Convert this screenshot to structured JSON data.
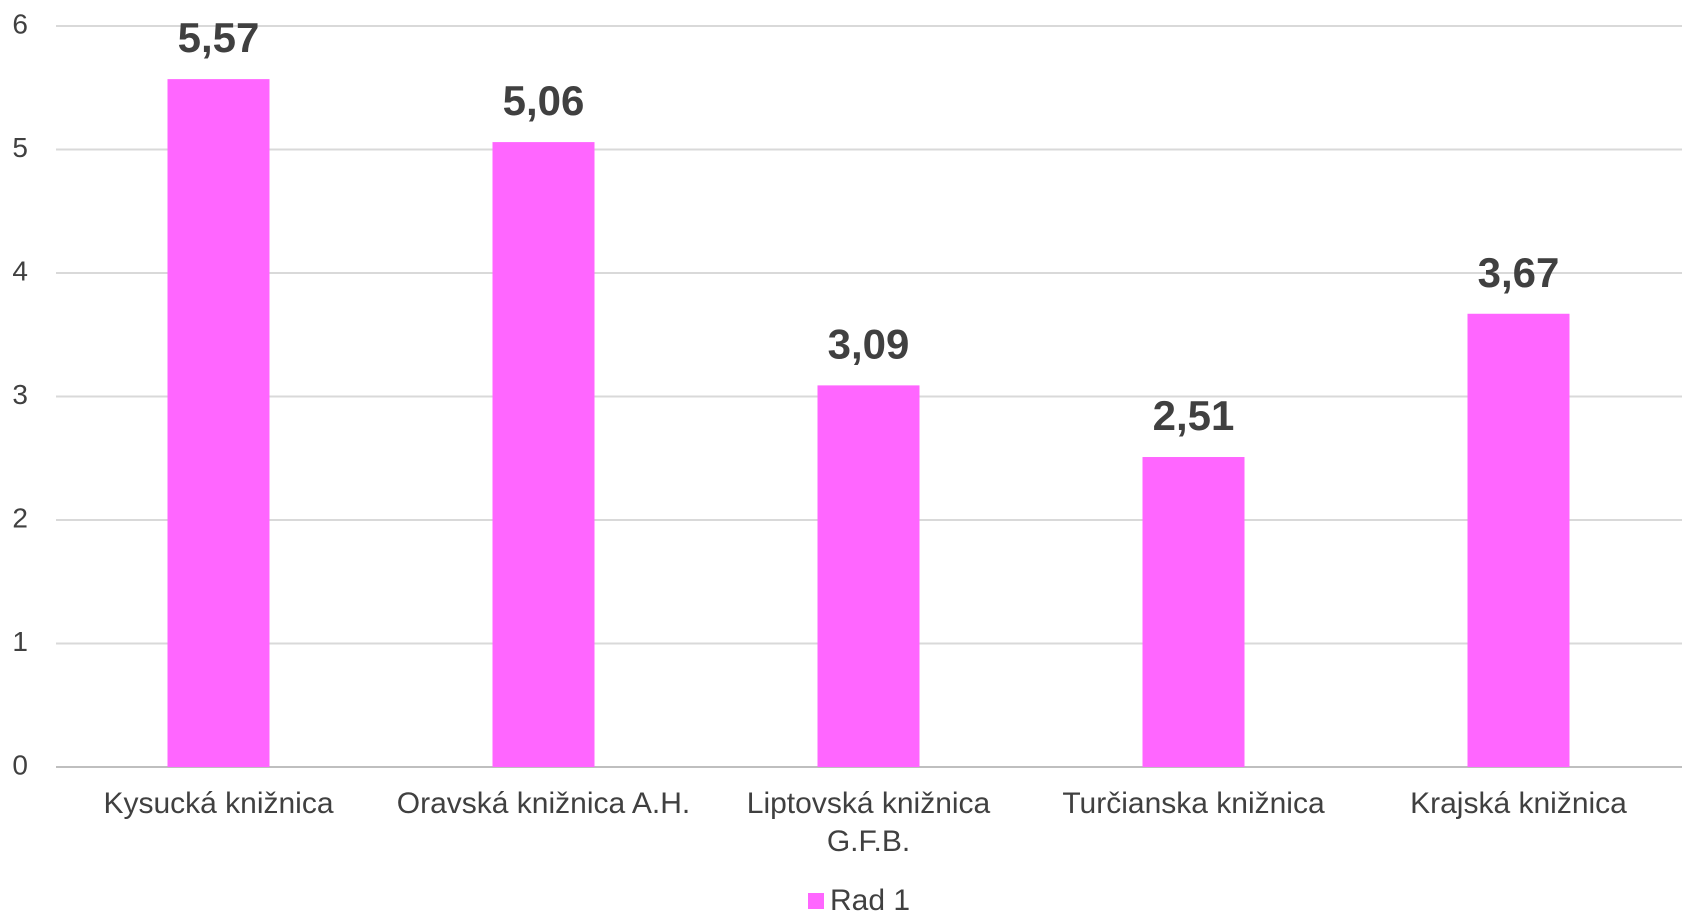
{
  "chart_data": {
    "type": "bar",
    "categories": [
      "Kysucká knižnica",
      "Oravská knižnica A.H.",
      "Liptovská knižnica G.F.B.",
      "Turčianska knižnica",
      "Krajská knižnica"
    ],
    "series": [
      {
        "name": "Rad 1",
        "color": "#ff66ff",
        "values": [
          5.57,
          5.06,
          3.09,
          2.51,
          3.67
        ],
        "value_labels": [
          "5,57",
          "5,06",
          "3,09",
          "2,51",
          "3,67"
        ]
      }
    ],
    "ylim": [
      0,
      6
    ],
    "yticks": [
      0,
      1,
      2,
      3,
      4,
      5,
      6
    ],
    "grid": true,
    "legend": "bottom"
  }
}
